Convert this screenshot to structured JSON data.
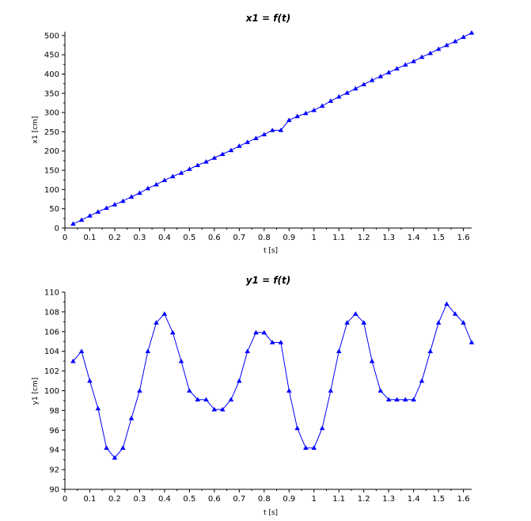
{
  "chart_data": [
    {
      "type": "line",
      "title": "x1 = f(t)",
      "xlabel": "t [s]",
      "ylabel": "x1 [cm]",
      "xlim": [
        0,
        1.633
      ],
      "ylim": [
        0,
        510
      ],
      "xticks": [
        "0",
        "0.1",
        "0.2",
        "0.3",
        "0.4",
        "0.5",
        "0.6",
        "0.7",
        "0.8",
        "0.9",
        "1",
        "1.1",
        "1.2",
        "1.3",
        "1.4",
        "1.5",
        "1.6"
      ],
      "yticks": [
        "0",
        "50",
        "100",
        "150",
        "200",
        "250",
        "300",
        "350",
        "400",
        "450",
        "500"
      ],
      "marker": "triangle",
      "color": "#0000ff",
      "series": [
        {
          "x": [
            0.033,
            0.067,
            0.1,
            0.133,
            0.167,
            0.2,
            0.233,
            0.267,
            0.3,
            0.333,
            0.367,
            0.4,
            0.433,
            0.467,
            0.5,
            0.533,
            0.567,
            0.6,
            0.633,
            0.667,
            0.7,
            0.733,
            0.767,
            0.8,
            0.833,
            0.867,
            0.9,
            0.933,
            0.967,
            1.0,
            1.033,
            1.067,
            1.1,
            1.133,
            1.167,
            1.2,
            1.233,
            1.267,
            1.3,
            1.333,
            1.367,
            1.4,
            1.433,
            1.467,
            1.5,
            1.533,
            1.567,
            1.6,
            1.633
          ],
          "values": [
            11,
            21,
            32,
            42,
            52,
            61,
            70,
            81,
            91,
            103,
            113,
            124,
            134,
            143,
            153,
            163,
            172,
            182,
            192,
            202,
            213,
            223,
            233,
            243,
            254,
            254,
            280,
            290,
            298,
            306,
            317,
            330,
            341,
            351,
            362,
            373,
            384,
            394,
            404,
            414,
            424,
            433,
            444,
            454,
            465,
            475,
            485,
            496,
            507
          ]
        }
      ]
    },
    {
      "type": "line",
      "title": "y1 = f(t)",
      "xlabel": "t [s]",
      "ylabel": "y1 [cm]",
      "xlim": [
        0,
        1.633
      ],
      "ylim": [
        90,
        110
      ],
      "xticks": [
        "0",
        "0.1",
        "0.2",
        "0.3",
        "0.4",
        "0.5",
        "0.6",
        "0.7",
        "0.8",
        "0.9",
        "1",
        "1.1",
        "1.2",
        "1.3",
        "1.4",
        "1.5",
        "1.6"
      ],
      "yticks": [
        "90",
        "92",
        "94",
        "96",
        "98",
        "100",
        "102",
        "104",
        "106",
        "108",
        "110"
      ],
      "marker": "triangle",
      "color": "#0000ff",
      "series": [
        {
          "x": [
            0.033,
            0.067,
            0.1,
            0.133,
            0.167,
            0.2,
            0.233,
            0.267,
            0.3,
            0.333,
            0.367,
            0.4,
            0.433,
            0.467,
            0.5,
            0.533,
            0.567,
            0.6,
            0.633,
            0.667,
            0.7,
            0.733,
            0.767,
            0.8,
            0.833,
            0.867,
            0.9,
            0.933,
            0.967,
            1.0,
            1.033,
            1.067,
            1.1,
            1.133,
            1.167,
            1.2,
            1.233,
            1.267,
            1.3,
            1.333,
            1.367,
            1.4,
            1.433,
            1.467,
            1.5,
            1.533,
            1.567,
            1.6,
            1.633
          ],
          "values": [
            103,
            104,
            101,
            98.2,
            94.2,
            93.2,
            94.2,
            97.2,
            100,
            104,
            106.9,
            107.8,
            105.9,
            103,
            100,
            99.1,
            99.1,
            98.1,
            98.1,
            99.1,
            101,
            104,
            105.9,
            105.9,
            104.9,
            104.9,
            100,
            96.2,
            94.2,
            94.2,
            96.2,
            100,
            104,
            106.9,
            107.8,
            106.9,
            103,
            100,
            99.1,
            99.1,
            99.1,
            99.1,
            101,
            104,
            106.9,
            108.8,
            107.8,
            106.9,
            104.9
          ]
        }
      ]
    }
  ]
}
